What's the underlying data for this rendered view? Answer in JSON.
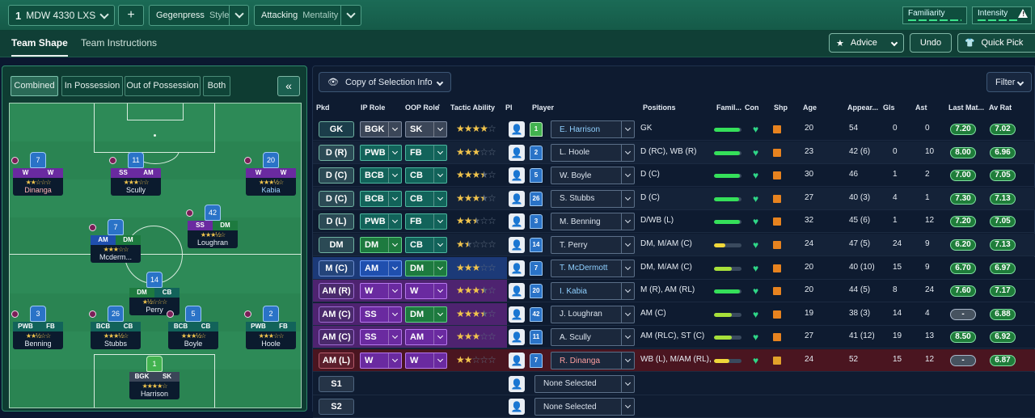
{
  "topbar": {
    "tactic_slot": "1",
    "tactic_name": "MDW 4330 LXS",
    "add_label": "+",
    "style_name": "Gegenpress",
    "style_label": "Style",
    "mentality_name": "Attacking",
    "mentality_label": "Mentality",
    "familiarity_label": "Familiarity",
    "intensity_label": "Intensity",
    "intensity_warning": "!"
  },
  "subbar": {
    "tabs": [
      "Team Shape",
      "Team Instructions"
    ],
    "advice_label": "Advice",
    "undo_label": "Undo",
    "quickpick_label": "Quick Pick"
  },
  "left": {
    "toggles": [
      "Combined",
      "In Possession",
      "Out of Possession",
      "Both"
    ],
    "collapse_label": "«",
    "players": [
      {
        "id": "dinanga",
        "num": "7",
        "r1": "W",
        "r2": "W",
        "stars": "★★☆☆☆",
        "name": "Dinanga"
      },
      {
        "id": "scully",
        "num": "11",
        "r1": "SS",
        "r2": "AM",
        "stars": "★★★☆☆",
        "name": "Scully"
      },
      {
        "id": "kabia",
        "num": "20",
        "r1": "W",
        "r2": "W",
        "stars": "★★★½☆",
        "name": "Kabia"
      },
      {
        "id": "loughran",
        "num": "42",
        "r1": "SS",
        "r2": "DM",
        "stars": "★★★½☆",
        "name": "Loughran"
      },
      {
        "id": "mcdermott",
        "num": "7",
        "r1": "AM",
        "r2": "DM",
        "stars": "★★★☆☆",
        "name": "Mcderm..."
      },
      {
        "id": "perry",
        "num": "14",
        "r1": "DM",
        "r2": "CB",
        "stars": "★½☆☆☆",
        "name": "Perry"
      },
      {
        "id": "benning",
        "num": "3",
        "r1": "PWB",
        "r2": "FB",
        "stars": "★★½☆☆",
        "name": "Benning"
      },
      {
        "id": "stubbs",
        "num": "26",
        "r1": "BCB",
        "r2": "CB",
        "stars": "★★★½☆",
        "name": "Stubbs"
      },
      {
        "id": "boyle",
        "num": "5",
        "r1": "BCB",
        "r2": "CB",
        "stars": "★★★½☆",
        "name": "Boyle"
      },
      {
        "id": "hoole",
        "num": "2",
        "r1": "PWB",
        "r2": "FB",
        "stars": "★★★☆☆",
        "name": "Hoole"
      },
      {
        "id": "harrison",
        "num": "1",
        "r1": "BGK",
        "r2": "SK",
        "stars": "★★★★☆",
        "name": "Harrison"
      }
    ]
  },
  "right": {
    "selection_info_label": "Copy of Selection Info",
    "filter_label": "Filter",
    "headers": {
      "pkd": "Pkd",
      "ip_role": "IP Role",
      "oop_role": "OOP Role",
      "sort_arrow": "↑",
      "tactic_ability": "Tactic Ability",
      "pi": "PI",
      "player": "Player",
      "positions": "Positions",
      "familiarity": "Famil...",
      "con": "Con",
      "shp": "Shp",
      "age": "Age",
      "appearances": "Appear...",
      "gls": "Gls",
      "ast": "Ast",
      "last_match": "Last Mat...",
      "av_rat": "Av Rat"
    },
    "rows": [
      {
        "pkd": "GK",
        "ip": "BGK",
        "oop": "SK",
        "full": 4,
        "half": 0,
        "num": "1",
        "player": "E. Harrison",
        "pos": "GK",
        "fam": 0.95,
        "age": "20",
        "apps": "54",
        "gls": "0",
        "ast": "0",
        "last": "7.20",
        "avr": "7.02"
      },
      {
        "pkd": "D (R)",
        "ip": "PWB",
        "oop": "FB",
        "full": 3,
        "half": 0,
        "num": "2",
        "player": "L. Hoole",
        "pos": "D (RC), WB (R)",
        "fam": 0.95,
        "age": "23",
        "apps": "42 (6)",
        "gls": "0",
        "ast": "10",
        "last": "8.00",
        "avr": "6.96"
      },
      {
        "pkd": "D (C)",
        "ip": "BCB",
        "oop": "CB",
        "full": 3,
        "half": 1,
        "num": "5",
        "player": "W. Boyle",
        "pos": "D (C)",
        "fam": 0.95,
        "age": "30",
        "apps": "46",
        "gls": "1",
        "ast": "2",
        "last": "7.00",
        "avr": "7.05"
      },
      {
        "pkd": "D (C)",
        "ip": "BCB",
        "oop": "CB",
        "full": 3,
        "half": 1,
        "num": "26",
        "player": "S. Stubbs",
        "pos": "D (C)",
        "fam": 0.9,
        "age": "27",
        "apps": "40 (3)",
        "gls": "4",
        "ast": "1",
        "last": "7.30",
        "avr": "7.13"
      },
      {
        "pkd": "D (L)",
        "ip": "PWB",
        "oop": "FB",
        "full": 2,
        "half": 1,
        "num": "3",
        "player": "M. Benning",
        "pos": "D/WB (L)",
        "fam": 0.95,
        "age": "32",
        "apps": "45 (6)",
        "gls": "1",
        "ast": "12",
        "last": "7.20",
        "avr": "7.05"
      },
      {
        "pkd": "DM",
        "ip": "DM",
        "oop": "CB",
        "full": 1,
        "half": 1,
        "num": "14",
        "player": "T. Perry",
        "pos": "DM, M/AM (C)",
        "fam": 0.4,
        "age": "24",
        "apps": "47 (5)",
        "gls": "24",
        "ast": "9",
        "last": "6.20",
        "avr": "7.13"
      },
      {
        "pkd": "M (C)",
        "ip": "AM",
        "oop": "DM",
        "full": 3,
        "half": 0,
        "num": "7",
        "player": "T. McDermott",
        "pos": "DM, M/AM (C)",
        "fam": 0.65,
        "age": "20",
        "apps": "40 (10)",
        "gls": "15",
        "ast": "9",
        "last": "6.70",
        "avr": "6.97"
      },
      {
        "pkd": "AM (R)",
        "ip": "W",
        "oop": "W",
        "full": 3,
        "half": 1,
        "num": "20",
        "player": "I. Kabia",
        "pos": "M (R), AM (RL)",
        "fam": 0.95,
        "age": "20",
        "apps": "44 (5)",
        "gls": "8",
        "ast": "24",
        "last": "7.60",
        "avr": "7.17"
      },
      {
        "pkd": "AM (C)",
        "ip": "SS",
        "oop": "DM",
        "full": 3,
        "half": 1,
        "num": "42",
        "player": "J. Loughran",
        "pos": "AM (C)",
        "fam": 0.65,
        "age": "19",
        "apps": "38 (3)",
        "gls": "14",
        "ast": "4",
        "last": "-",
        "avr": "6.88"
      },
      {
        "pkd": "AM (C)",
        "ip": "SS",
        "oop": "AM",
        "full": 3,
        "half": 0,
        "num": "11",
        "player": "A. Scully",
        "pos": "AM (RLC), ST (C)",
        "fam": 0.65,
        "age": "27",
        "apps": "41 (12)",
        "gls": "19",
        "ast": "13",
        "last": "8.50",
        "avr": "6.92"
      },
      {
        "pkd": "AM (L)",
        "ip": "W",
        "oop": "W",
        "full": 2,
        "half": 0,
        "num": "7",
        "player": "R. Dinanga",
        "pos": "WB (L), M/AM (RL), S...",
        "fam": 0.55,
        "age": "24",
        "apps": "52",
        "gls": "15",
        "ast": "12",
        "last": "-",
        "avr": "6.87"
      }
    ],
    "subs": [
      {
        "pkd": "S1",
        "player": "None Selected"
      },
      {
        "pkd": "S2",
        "player": "None Selected"
      }
    ]
  }
}
